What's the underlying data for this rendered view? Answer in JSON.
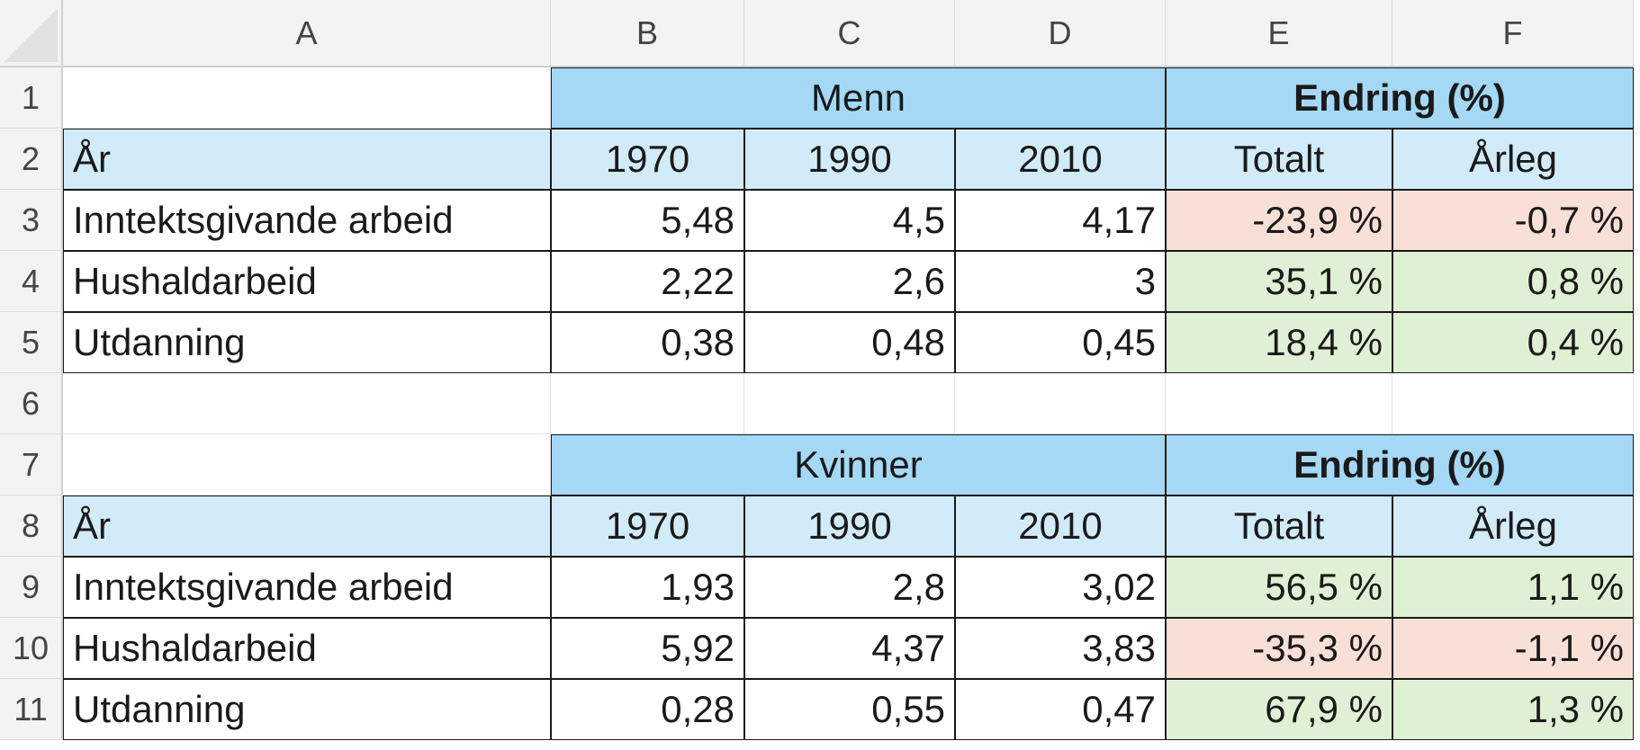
{
  "columns": [
    "A",
    "B",
    "C",
    "D",
    "E",
    "F"
  ],
  "rows": [
    "1",
    "2",
    "3",
    "4",
    "5",
    "6",
    "7",
    "8",
    "9",
    "10",
    "11"
  ],
  "colors": {
    "header_dark": "#a5d8f5",
    "header_light": "#d2ebf8",
    "negative_fill": "#f9e0d6",
    "positive_fill": "#e0f0d4"
  },
  "icons": {
    "select_all": "select-all-corner-icon"
  },
  "table_men": {
    "group_label": "Menn",
    "change_label": "Endring (%)",
    "year_label": "År",
    "years": [
      "1970",
      "1990",
      "2010"
    ],
    "change_cols": [
      "Totalt",
      "Årleg"
    ],
    "rows": [
      {
        "label": "Inntektsgivande arbeid",
        "values": [
          "5,48",
          "4,5",
          "4,17"
        ],
        "total": "-23,9 %",
        "annual": "-0,7 %",
        "trend": "negative"
      },
      {
        "label": "Hushaldarbeid",
        "values": [
          "2,22",
          "2,6",
          "3"
        ],
        "total": "35,1 %",
        "annual": "0,8 %",
        "trend": "positive"
      },
      {
        "label": "Utdanning",
        "values": [
          "0,38",
          "0,48",
          "0,45"
        ],
        "total": "18,4 %",
        "annual": "0,4 %",
        "trend": "positive"
      }
    ]
  },
  "table_women": {
    "group_label": "Kvinner",
    "change_label": "Endring (%)",
    "year_label": "År",
    "years": [
      "1970",
      "1990",
      "2010"
    ],
    "change_cols": [
      "Totalt",
      "Årleg"
    ],
    "rows": [
      {
        "label": "Inntektsgivande arbeid",
        "values": [
          "1,93",
          "2,8",
          "3,02"
        ],
        "total": "56,5 %",
        "annual": "1,1 %",
        "trend": "positive"
      },
      {
        "label": "Hushaldarbeid",
        "values": [
          "5,92",
          "4,37",
          "3,83"
        ],
        "total": "-35,3 %",
        "annual": "-1,1 %",
        "trend": "negative"
      },
      {
        "label": "Utdanning",
        "values": [
          "0,28",
          "0,55",
          "0,47"
        ],
        "total": "67,9 %",
        "annual": "1,3 %",
        "trend": "positive"
      }
    ]
  }
}
